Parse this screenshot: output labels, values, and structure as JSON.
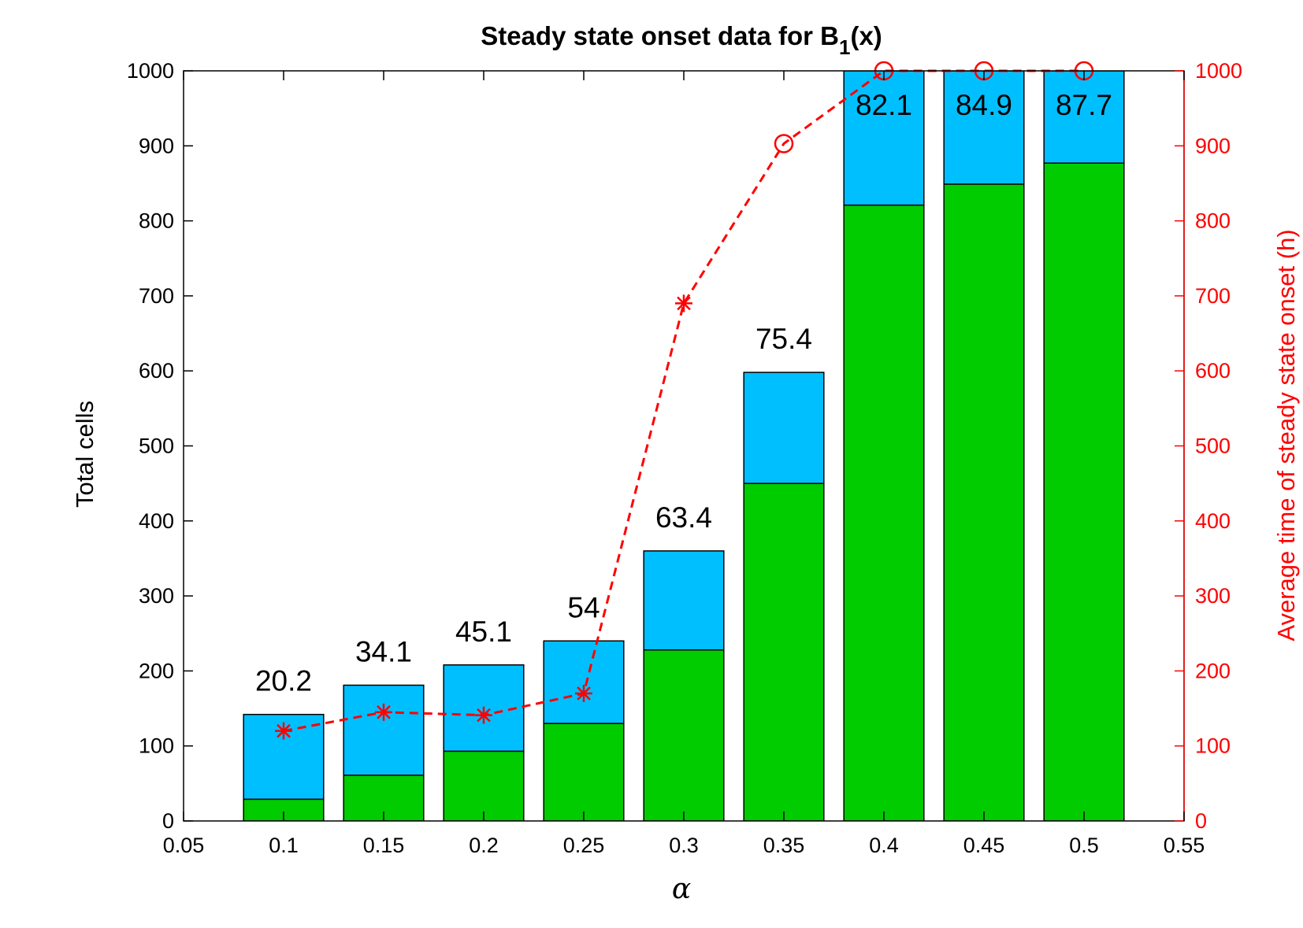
{
  "chart_data": {
    "type": "bar",
    "title": "Steady state onset data for B",
    "title_sub": "1",
    "title_tail": "(x)",
    "xlabel": "α",
    "ylabel": "Total cells",
    "ylabel_right": "Average time of steady state onset (h)",
    "xlim": [
      0.05,
      0.55
    ],
    "ylim": [
      0,
      1000
    ],
    "ylim_right": [
      0,
      1000
    ],
    "xticks": [
      "0.05",
      "0.1",
      "0.15",
      "0.2",
      "0.25",
      "0.3",
      "0.35",
      "0.4",
      "0.45",
      "0.5",
      "0.55"
    ],
    "yticks": [
      "0",
      "100",
      "200",
      "300",
      "400",
      "500",
      "600",
      "700",
      "800",
      "900",
      "1000"
    ],
    "yticks_right": [
      "0",
      "100",
      "200",
      "300",
      "400",
      "500",
      "600",
      "700",
      "800",
      "900",
      "1000"
    ],
    "grid": false,
    "stacked": true,
    "x": [
      0.1,
      0.15,
      0.2,
      0.25,
      0.3,
      0.35,
      0.4,
      0.45,
      0.5
    ],
    "series": [
      {
        "values": [
          29,
          61,
          93,
          130,
          228,
          450,
          821,
          849,
          877
        ],
        "color": "#00cc00"
      },
      {
        "values": [
          113,
          120,
          115,
          110,
          132,
          148,
          179,
          151,
          123
        ],
        "color": "#00bfff"
      }
    ],
    "bar_labels": [
      "20.2",
      "34.1",
      "45.1",
      "54",
      "63.4",
      "75.4",
      "82.1",
      "84.9",
      "87.7"
    ],
    "line_series": {
      "axis": "right",
      "color": "#ff0000",
      "style": "dashed",
      "values": [
        120,
        145,
        141,
        170,
        690,
        903,
        1000,
        1000,
        1000
      ],
      "markers": [
        "star",
        "star",
        "star",
        "star",
        "star",
        "circle",
        "circle",
        "circle",
        "circle"
      ]
    },
    "colors": {
      "axis": "#000000",
      "right_axis": "#ff0000",
      "bar_edge": "#000000"
    }
  }
}
